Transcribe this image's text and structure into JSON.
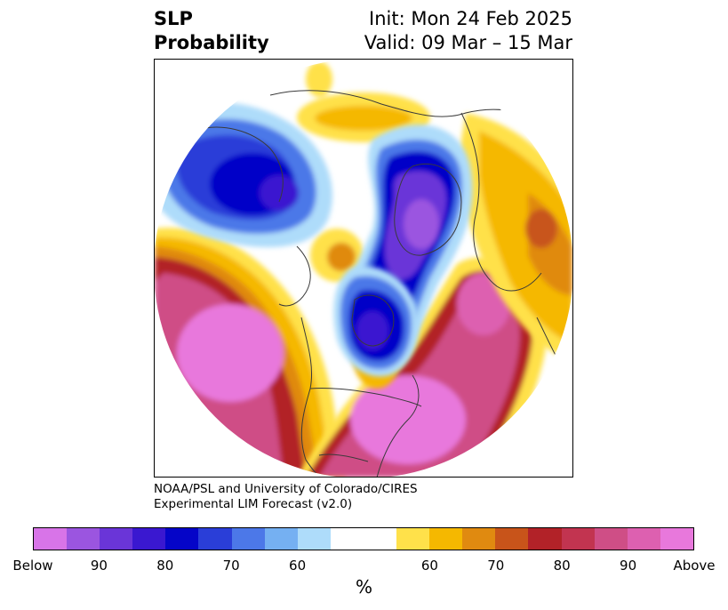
{
  "header": {
    "title_line1": "SLP",
    "title_line2": "Probability",
    "init_label": "Init: Mon 24 Feb 2025",
    "valid_label": "Valid: 09 Mar – 15 Mar"
  },
  "credit": {
    "line1": "NOAA/PSL and University of Colorado/CIRES",
    "line2": "Experimental LIM Forecast (v2.0)"
  },
  "colorbar": {
    "unit": "%",
    "colors": [
      "#d874e8",
      "#9b55e0",
      "#6a35d8",
      "#3a18d0",
      "#0505c8",
      "#2a3ed8",
      "#4c78e8",
      "#75b0f2",
      "#aedcfa",
      "#ffffff",
      "#ffffff",
      "#ffe14a",
      "#f5b800",
      "#e08a10",
      "#c8541a",
      "#b22228",
      "#c23450",
      "#cf4e86",
      "#dd60b0",
      "#e878dc"
    ],
    "ticks": [
      "Below",
      "90",
      "80",
      "70",
      "60",
      "60",
      "70",
      "80",
      "90",
      "Above"
    ]
  },
  "map": {
    "projection": "north-polar-stereographic",
    "palette": {
      "below_strong": "#9b55e0",
      "below_mid": "#0505c8",
      "below_weak": "#4c78e8",
      "below_light": "#aedcfa",
      "above_light": "#ffe14a",
      "above_mid": "#f5b800",
      "above_orange": "#e08a10",
      "above_red": "#b22228",
      "above_pink": "#cf4e86",
      "above_strong": "#e878dc"
    }
  }
}
